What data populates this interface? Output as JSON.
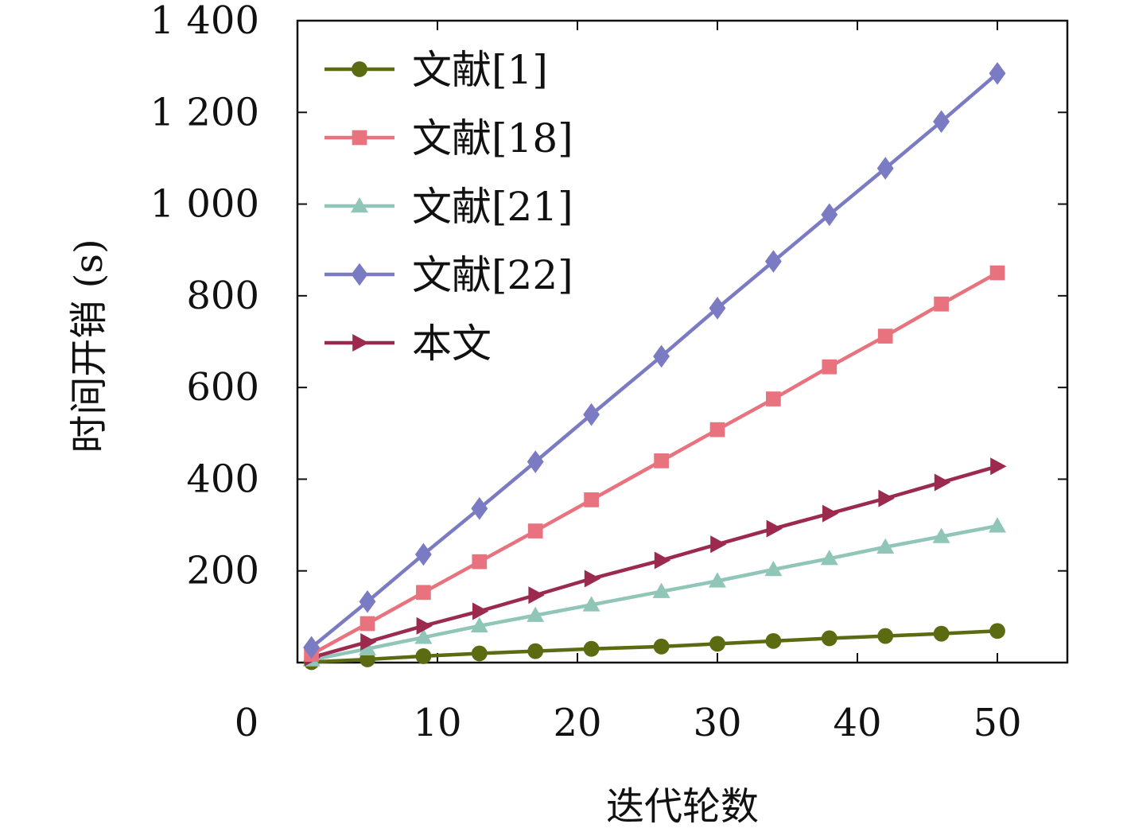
{
  "chart_data": {
    "type": "line",
    "xlabel": "迭代轮数",
    "ylabel": "时间开销 (s)",
    "xlim": [
      0,
      55
    ],
    "ylim": [
      0,
      1400
    ],
    "x_origin_label": "0",
    "xticks": [
      10,
      20,
      30,
      40,
      50
    ],
    "xtick_labels": [
      "10",
      "20",
      "30",
      "40",
      "50"
    ],
    "yticks": [
      200,
      400,
      600,
      800,
      1000,
      1200,
      1400
    ],
    "ytick_labels": [
      "200",
      "400",
      "600",
      "800",
      "1 000",
      "1 200",
      "1 400"
    ],
    "grid": false,
    "legend_position": "top-left",
    "x": [
      1,
      5,
      9,
      13,
      17,
      21,
      26,
      30,
      34,
      38,
      42,
      46,
      50
    ],
    "series": [
      {
        "name": "文献[1]",
        "marker": "circle",
        "color": "#5a6b12",
        "values": [
          1,
          7,
          14,
          20,
          25,
          30,
          35,
          41,
          47,
          53,
          58,
          63,
          69
        ]
      },
      {
        "name": "文献[18]",
        "marker": "square",
        "color": "#e8727e",
        "values": [
          18,
          85,
          153,
          220,
          287,
          355,
          440,
          508,
          575,
          645,
          712,
          782,
          850
        ]
      },
      {
        "name": "文献[21]",
        "marker": "triangle-up",
        "color": "#8fc6b7",
        "values": [
          6,
          30,
          55,
          80,
          103,
          126,
          155,
          178,
          203,
          227,
          252,
          275,
          298
        ]
      },
      {
        "name": "文献[22]",
        "marker": "diamond",
        "color": "#7b7bc4",
        "values": [
          33,
          133,
          236,
          336,
          438,
          541,
          668,
          773,
          875,
          977,
          1078,
          1180,
          1285
        ]
      },
      {
        "name": "本文",
        "marker": "triangle-right",
        "color": "#9b2a4e",
        "values": [
          11,
          45,
          80,
          112,
          147,
          183,
          223,
          258,
          292,
          325,
          358,
          393,
          428
        ]
      }
    ]
  }
}
